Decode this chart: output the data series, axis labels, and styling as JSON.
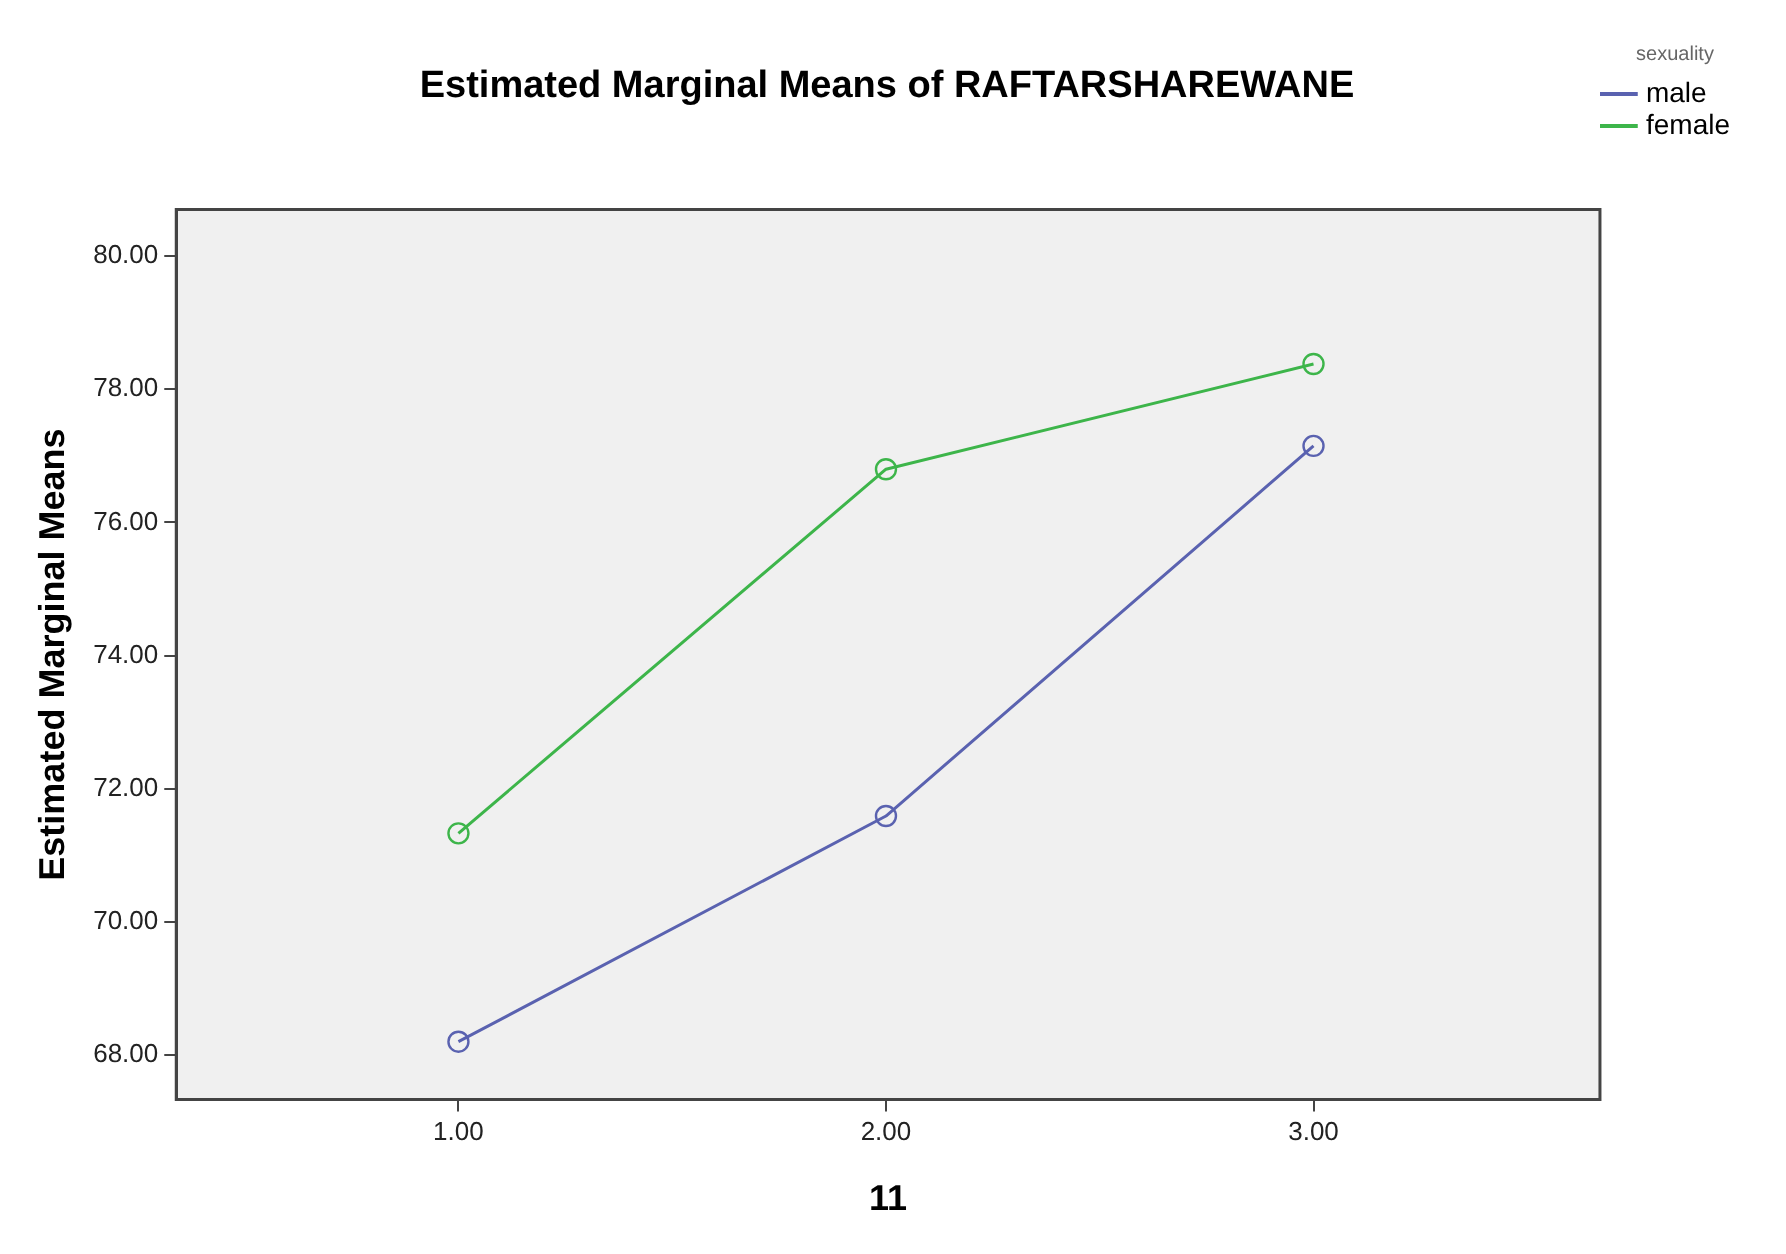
{
  "chart_data": {
    "type": "line",
    "title": "Estimated Marginal Means of RAFTARSHAREWANE",
    "xlabel": "11",
    "ylabel": "Estimated Marginal Means",
    "legend_title": "sexuality",
    "legend": "top right",
    "marker": "circle",
    "line_style": "solid",
    "grid": false,
    "x": [
      1,
      2,
      3
    ],
    "xlim": [
      0.34,
      3.67
    ],
    "xticks": [
      {
        "value": 1,
        "label": "1.00"
      },
      {
        "value": 2,
        "label": "2.00"
      },
      {
        "value": 3,
        "label": "3.00"
      }
    ],
    "ylim": [
      67.33,
      80.7
    ],
    "yticks": [
      {
        "value": 68,
        "label": "68.00"
      },
      {
        "value": 70,
        "label": "70.00"
      },
      {
        "value": 72,
        "label": "72.00"
      },
      {
        "value": 74,
        "label": "74.00"
      },
      {
        "value": 76,
        "label": "76.00"
      },
      {
        "value": 78,
        "label": "78.00"
      },
      {
        "value": 80,
        "label": "80.00"
      }
    ],
    "series": [
      {
        "name": "male",
        "color": "#5a62b0",
        "values": [
          68.2,
          71.59,
          77.15
        ]
      },
      {
        "name": "female",
        "color": "#3db54a",
        "values": [
          71.33,
          76.8,
          78.38
        ]
      }
    ]
  }
}
